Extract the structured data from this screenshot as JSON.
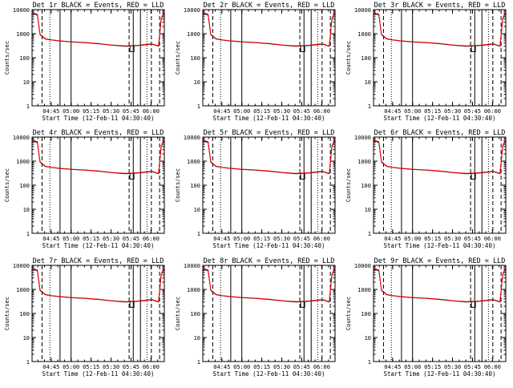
{
  "chart_data": [
    {
      "type": "line",
      "title": "Det 1r BLACK = Events, RED = LLD",
      "xlabel": "Start Time (12-Feb-11 04:30:40)",
      "ylabel": "Counts/sec",
      "yscale": "log",
      "ylim": [
        1,
        10000
      ],
      "xlim": [
        "04:30:40",
        "06:10:00"
      ],
      "xtick_labels": [
        "04:45",
        "05:00",
        "05:15",
        "05:30",
        "05:45",
        "06:00"
      ],
      "ytick_labels": [
        "1",
        "10",
        "100",
        "1000",
        "10000"
      ],
      "grid": false,
      "series": [
        {
          "name": "Events",
          "color": "#000000"
        },
        {
          "name": "LLD",
          "color": "#ff0000"
        }
      ]
    },
    {
      "type": "line",
      "title": "Det 2r BLACK = Events, RED = LLD",
      "xlabel": "Start Time (12-Feb-11 04:30:40)",
      "ylabel": "Counts/sec",
      "yscale": "log",
      "ylim": [
        1,
        10000
      ],
      "xlim": [
        "04:30:40",
        "06:10:00"
      ],
      "xtick_labels": [
        "04:45",
        "05:00",
        "05:15",
        "05:30",
        "05:45",
        "06:00"
      ],
      "ytick_labels": [
        "1",
        "10",
        "100",
        "1000",
        "10000"
      ],
      "grid": false,
      "series": [
        {
          "name": "Events",
          "color": "#000000"
        },
        {
          "name": "LLD",
          "color": "#ff0000"
        }
      ]
    },
    {
      "type": "line",
      "title": "Det 3r BLACK = Events, RED = LLD",
      "xlabel": "Start Time (12-Feb-11 04:30:40)",
      "ylabel": "Counts/sec",
      "yscale": "log",
      "ylim": [
        1,
        10000
      ],
      "xlim": [
        "04:30:40",
        "06:10:00"
      ],
      "xtick_labels": [
        "04:45",
        "05:00",
        "05:15",
        "05:30",
        "05:45",
        "06:00"
      ],
      "ytick_labels": [
        "1",
        "10",
        "100",
        "1000",
        "10000"
      ],
      "grid": false,
      "series": [
        {
          "name": "Events",
          "color": "#000000"
        },
        {
          "name": "LLD",
          "color": "#ff0000"
        }
      ]
    },
    {
      "type": "line",
      "title": "Det 4r BLACK = Events, RED = LLD",
      "xlabel": "Start Time (12-Feb-11 04:30:40)",
      "ylabel": "Counts/sec",
      "yscale": "log",
      "ylim": [
        1,
        10000
      ],
      "xlim": [
        "04:30:40",
        "06:10:00"
      ],
      "xtick_labels": [
        "04:45",
        "05:00",
        "05:15",
        "05:30",
        "05:45",
        "06:00"
      ],
      "ytick_labels": [
        "1",
        "10",
        "100",
        "1000",
        "10000"
      ],
      "grid": false,
      "series": [
        {
          "name": "Events",
          "color": "#000000"
        },
        {
          "name": "LLD",
          "color": "#ff0000"
        }
      ]
    },
    {
      "type": "line",
      "title": "Det 5r BLACK = Events, RED = LLD",
      "xlabel": "Start Time (12-Feb-11 04:30:40)",
      "ylabel": "Counts/sec",
      "yscale": "log",
      "ylim": [
        1,
        10000
      ],
      "xlim": [
        "04:30:40",
        "06:10:00"
      ],
      "xtick_labels": [
        "04:45",
        "05:00",
        "05:15",
        "05:30",
        "05:45",
        "06:00"
      ],
      "ytick_labels": [
        "1",
        "10",
        "100",
        "1000",
        "10000"
      ],
      "grid": false,
      "series": [
        {
          "name": "Events",
          "color": "#000000"
        },
        {
          "name": "LLD",
          "color": "#ff0000"
        }
      ]
    },
    {
      "type": "line",
      "title": "Det 6r BLACK = Events, RED = LLD",
      "xlabel": "Start Time (12-Feb-11 04:30:40)",
      "ylabel": "Counts/sec",
      "yscale": "log",
      "ylim": [
        1,
        10000
      ],
      "xlim": [
        "04:30:40",
        "06:10:00"
      ],
      "xtick_labels": [
        "04:45",
        "05:00",
        "05:15",
        "05:30",
        "05:45",
        "06:00"
      ],
      "ytick_labels": [
        "1",
        "10",
        "100",
        "1000",
        "10000"
      ],
      "grid": false,
      "series": [
        {
          "name": "Events",
          "color": "#000000"
        },
        {
          "name": "LLD",
          "color": "#ff0000"
        }
      ]
    },
    {
      "type": "line",
      "title": "Det 7r BLACK = Events, RED = LLD",
      "xlabel": "Start Time (12-Feb-11 04:30:40)",
      "ylabel": "Counts/sec",
      "yscale": "log",
      "ylim": [
        1,
        10000
      ],
      "xlim": [
        "04:30:40",
        "06:10:00"
      ],
      "xtick_labels": [
        "04:45",
        "05:00",
        "05:15",
        "05:30",
        "05:45",
        "06:00"
      ],
      "ytick_labels": [
        "1",
        "10",
        "100",
        "1000",
        "10000"
      ],
      "grid": false,
      "series": [
        {
          "name": "Events",
          "color": "#000000"
        },
        {
          "name": "LLD",
          "color": "#ff0000"
        }
      ]
    },
    {
      "type": "line",
      "title": "Det 8r BLACK = Events, RED = LLD",
      "xlabel": "Start Time (12-Feb-11 04:30:40)",
      "ylabel": "Counts/sec",
      "yscale": "log",
      "ylim": [
        1,
        10000
      ],
      "xlim": [
        "04:30:40",
        "06:10:00"
      ],
      "xtick_labels": [
        "04:45",
        "05:00",
        "05:15",
        "05:30",
        "05:45",
        "06:00"
      ],
      "ytick_labels": [
        "1",
        "10",
        "100",
        "1000",
        "10000"
      ],
      "grid": false,
      "series": [
        {
          "name": "Events",
          "color": "#000000"
        },
        {
          "name": "LLD",
          "color": "#ff0000"
        }
      ]
    },
    {
      "type": "line",
      "title": "Det 9r BLACK = Events, RED = LLD",
      "xlabel": "Start Time (12-Feb-11 04:30:40)",
      "ylabel": "Counts/sec",
      "yscale": "log",
      "ylim": [
        1,
        10000
      ],
      "xlim": [
        "04:30:40",
        "06:10:00"
      ],
      "xtick_labels": [
        "04:45",
        "05:00",
        "05:15",
        "05:30",
        "05:45",
        "06:00"
      ],
      "ytick_labels": [
        "1",
        "10",
        "100",
        "1000",
        "10000"
      ],
      "grid": false,
      "series": [
        {
          "name": "Events",
          "color": "#000000"
        },
        {
          "name": "LLD",
          "color": "#ff0000"
        }
      ]
    }
  ],
  "profile": {
    "x_minutes": [
      0,
      4,
      6,
      10,
      14,
      20,
      30,
      40,
      50,
      60,
      70,
      80,
      86,
      90,
      95,
      97,
      99.3
    ],
    "events": [
      7000,
      6000,
      900,
      600,
      550,
      500,
      450,
      420,
      380,
      330,
      300,
      320,
      350,
      370,
      300,
      4000,
      8000
    ],
    "lld": [
      7500,
      6500,
      950,
      620,
      560,
      510,
      460,
      430,
      390,
      340,
      310,
      330,
      360,
      380,
      310,
      4200,
      8500
    ],
    "dip_minutes": [
      73.5,
      76.5
    ],
    "dip_value": 180
  },
  "events_markers": {
    "solid": [
      21,
      29.3,
      76,
      81.4
    ],
    "dashed": [
      7.5,
      72.9,
      89.6,
      95.8
    ],
    "dotted": [
      13.4,
      86.3
    ]
  }
}
